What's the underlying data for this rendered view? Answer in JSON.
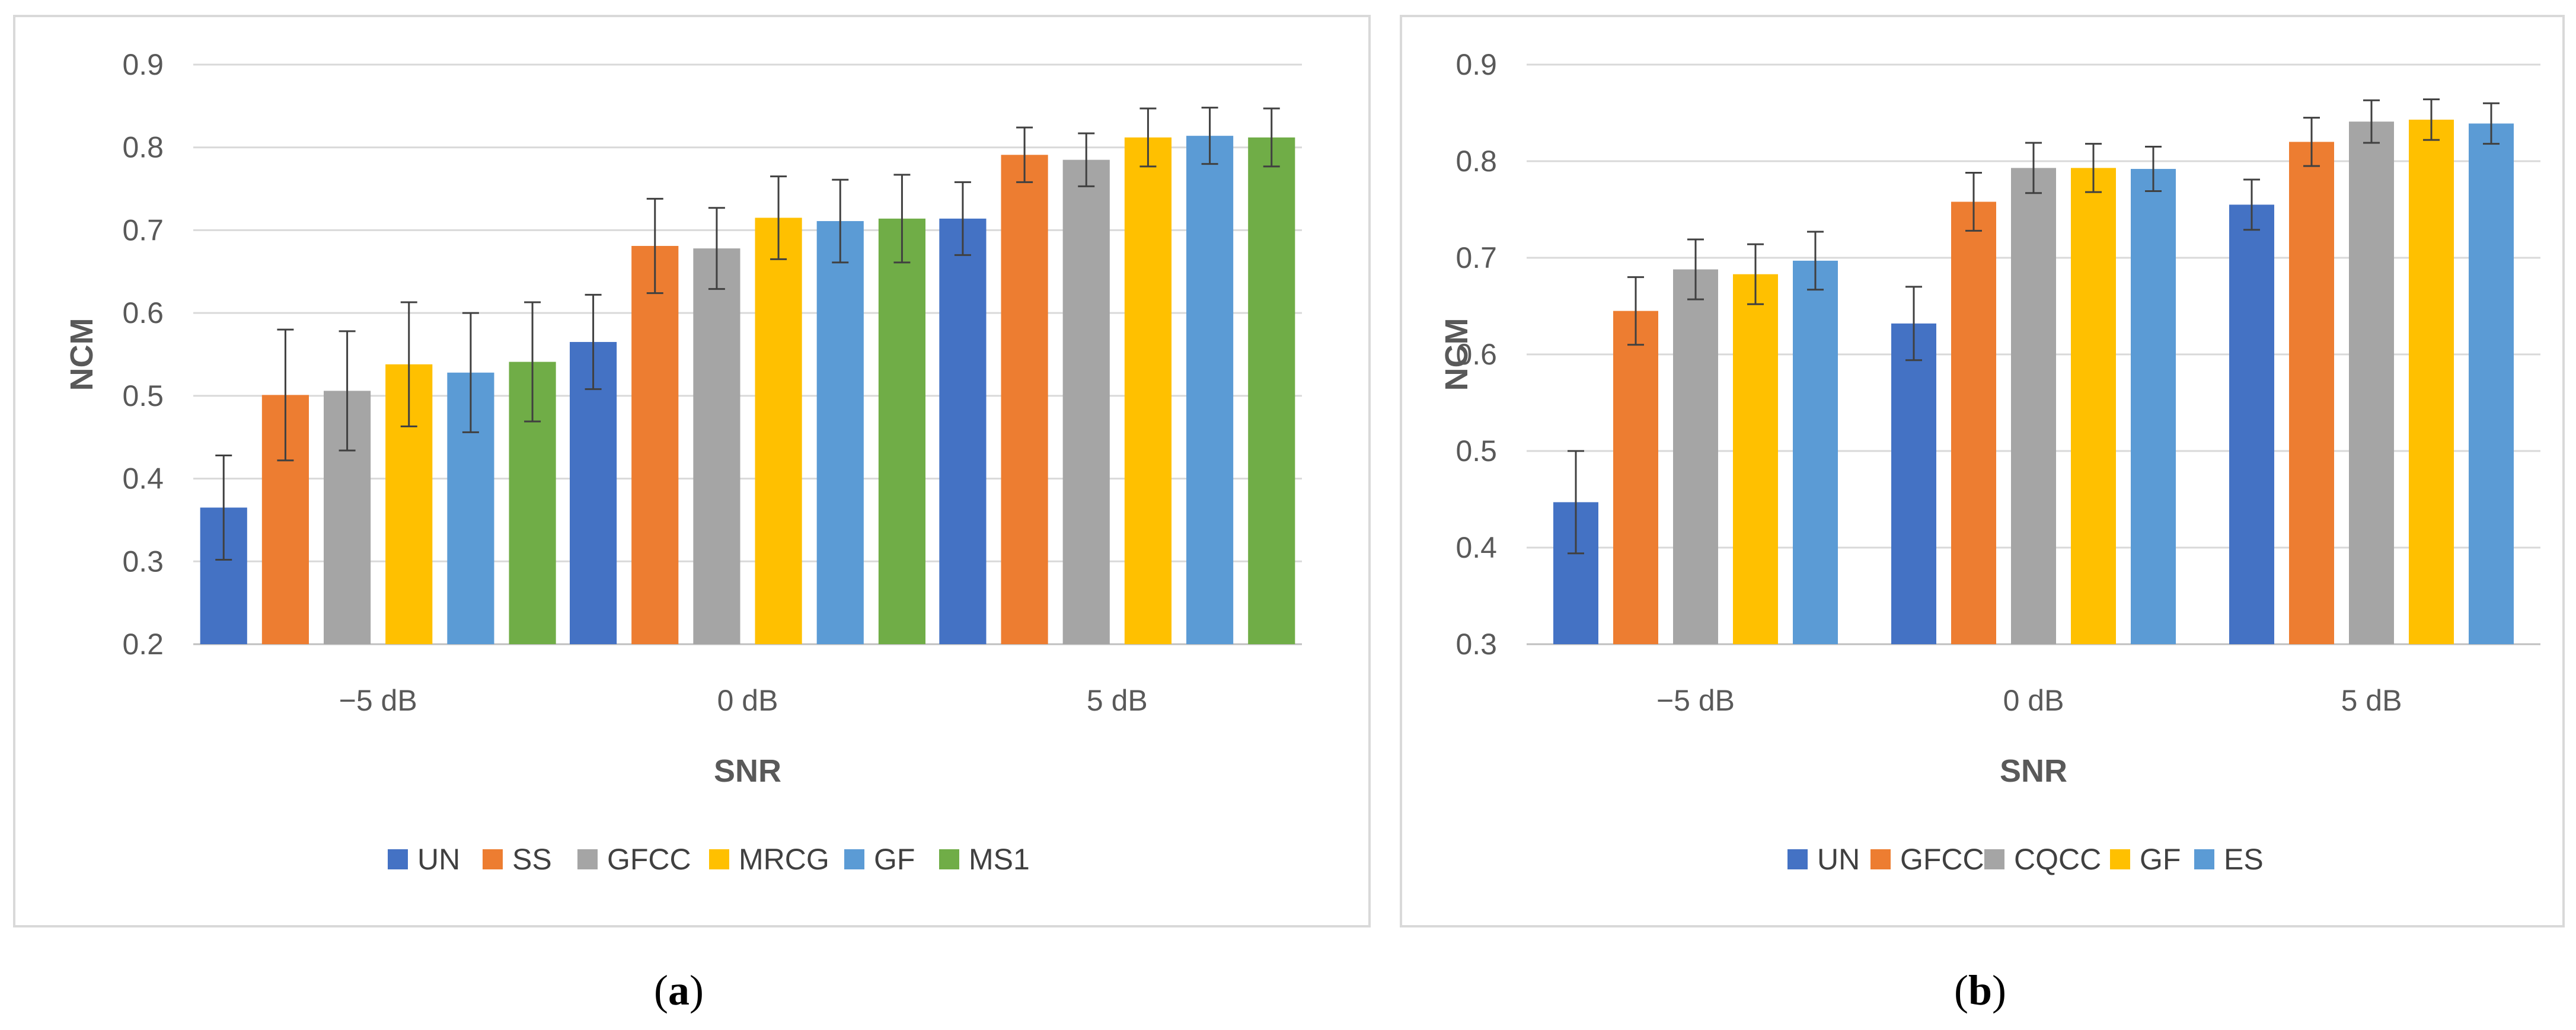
{
  "chart_data": [
    {
      "id": "a",
      "type": "bar",
      "ylabel": "NCM",
      "xlabel": "SNR",
      "ylim": [
        0.2,
        0.9
      ],
      "yticks": [
        "0.2",
        "0.3",
        "0.4",
        "0.5",
        "0.6",
        "0.7",
        "0.8",
        "0.9"
      ],
      "grid": true,
      "legend": "bottom",
      "error_bars": true,
      "categories": [
        "−5 dB",
        "0 dB",
        "5 dB"
      ],
      "series": [
        {
          "name": "UN",
          "color": "#4472C4",
          "values": [
            0.365,
            0.565,
            0.714
          ],
          "errors": [
            0.063,
            0.057,
            0.044
          ]
        },
        {
          "name": "SS",
          "color": "#ED7D31",
          "values": [
            0.501,
            0.681,
            0.791
          ],
          "errors": [
            0.079,
            0.057,
            0.033
          ]
        },
        {
          "name": "GFCC",
          "color": "#A5A5A5",
          "values": [
            0.506,
            0.678,
            0.785
          ],
          "errors": [
            0.072,
            0.049,
            0.032
          ]
        },
        {
          "name": "MRCG",
          "color": "#FFC000",
          "values": [
            0.538,
            0.715,
            0.812
          ],
          "errors": [
            0.075,
            0.05,
            0.035
          ]
        },
        {
          "name": "GF",
          "color": "#5B9BD5",
          "values": [
            0.528,
            0.711,
            0.814
          ],
          "errors": [
            0.072,
            0.05,
            0.034
          ]
        },
        {
          "name": "MS1",
          "color": "#70AD47",
          "values": [
            0.541,
            0.714,
            0.812
          ],
          "errors": [
            0.072,
            0.053,
            0.035
          ]
        }
      ]
    },
    {
      "id": "b",
      "type": "bar",
      "ylabel": "NCM",
      "xlabel": "SNR",
      "ylim": [
        0.3,
        0.9
      ],
      "yticks": [
        "0.3",
        "0.4",
        "0.5",
        "0.6",
        "0.7",
        "0.8",
        "0.9"
      ],
      "grid": true,
      "legend": "bottom",
      "error_bars": true,
      "categories": [
        "−5 dB",
        "0 dB",
        "5 dB"
      ],
      "series": [
        {
          "name": "UN",
          "color": "#4472C4",
          "values": [
            0.447,
            0.632,
            0.755
          ],
          "errors": [
            0.053,
            0.038,
            0.026
          ]
        },
        {
          "name": "GFCC",
          "color": "#ED7D31",
          "values": [
            0.645,
            0.758,
            0.82
          ],
          "errors": [
            0.035,
            0.03,
            0.025
          ]
        },
        {
          "name": "CQCC",
          "color": "#A5A5A5",
          "values": [
            0.688,
            0.793,
            0.841
          ],
          "errors": [
            0.031,
            0.026,
            0.022
          ]
        },
        {
          "name": "GF",
          "color": "#FFC000",
          "values": [
            0.683,
            0.793,
            0.843
          ],
          "errors": [
            0.031,
            0.025,
            0.021
          ]
        },
        {
          "name": "ES",
          "color": "#5B9BD5",
          "values": [
            0.697,
            0.792,
            0.839
          ],
          "errors": [
            0.03,
            0.023,
            0.021
          ]
        }
      ]
    }
  ],
  "captions": {
    "a": "a",
    "b": "b"
  }
}
